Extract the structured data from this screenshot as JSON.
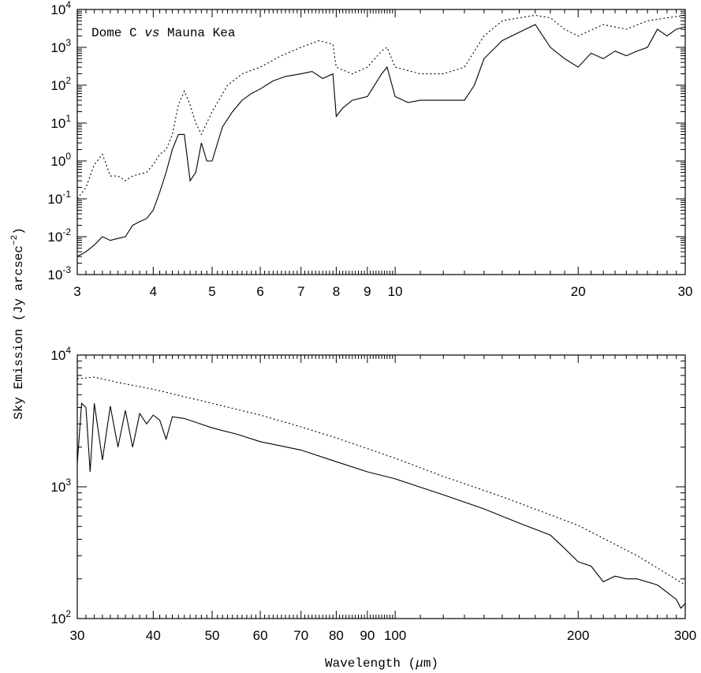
{
  "chart_data": [
    {
      "type": "line",
      "panel": "top",
      "annotation_parts": [
        "Dome C ",
        "vs",
        " Mauna Kea"
      ],
      "xscale": "log",
      "yscale": "log",
      "xlim": [
        3,
        30
      ],
      "ylim": [
        0.001,
        10000
      ],
      "xticks": [
        {
          "value": 3,
          "label": "3"
        },
        {
          "value": 4,
          "label": "4"
        },
        {
          "value": 5,
          "label": "5"
        },
        {
          "value": 6,
          "label": "6"
        },
        {
          "value": 7,
          "label": "7"
        },
        {
          "value": 8,
          "label": "8"
        },
        {
          "value": 9,
          "label": "9"
        },
        {
          "value": 10,
          "label": "10"
        },
        {
          "value": 20,
          "label": "20"
        },
        {
          "value": 30,
          "label": "30"
        }
      ],
      "yticks": [
        {
          "value": 0.001,
          "mantissa": "10",
          "exp": "-3"
        },
        {
          "value": 0.01,
          "mantissa": "10",
          "exp": "-2"
        },
        {
          "value": 0.1,
          "mantissa": "10",
          "exp": "-1"
        },
        {
          "value": 1,
          "mantissa": "10",
          "exp": "0"
        },
        {
          "value": 10,
          "mantissa": "10",
          "exp": "1"
        },
        {
          "value": 100,
          "mantissa": "10",
          "exp": "2"
        },
        {
          "value": 1000,
          "mantissa": "10",
          "exp": "3"
        },
        {
          "value": 10000,
          "mantissa": "10",
          "exp": "4"
        }
      ],
      "series": [
        {
          "style": "solid",
          "x": [
            3.0,
            3.1,
            3.2,
            3.3,
            3.4,
            3.5,
            3.6,
            3.7,
            3.8,
            3.9,
            4.0,
            4.1,
            4.2,
            4.3,
            4.4,
            4.5,
            4.6,
            4.7,
            4.8,
            4.9,
            5.0,
            5.2,
            5.4,
            5.6,
            5.8,
            6.0,
            6.3,
            6.6,
            7.0,
            7.3,
            7.6,
            7.9,
            8.0,
            8.2,
            8.5,
            9.0,
            9.5,
            9.7,
            10.0,
            10.5,
            11.0,
            12.0,
            13.0,
            13.5,
            14.0,
            15.0,
            16.0,
            17.0,
            18.0,
            19.0,
            20.0,
            21.0,
            22.0,
            23.0,
            24.0,
            25.0,
            26.0,
            27.0,
            28.0,
            29.0,
            30.0
          ],
          "y": [
            0.003,
            0.004,
            0.006,
            0.01,
            0.008,
            0.009,
            0.01,
            0.02,
            0.025,
            0.03,
            0.05,
            0.15,
            0.5,
            2.0,
            5.0,
            5.0,
            0.3,
            0.5,
            3.0,
            1.0,
            1.0,
            8.0,
            20.0,
            40.0,
            60.0,
            80.0,
            130.0,
            170.0,
            200.0,
            230.0,
            150.0,
            200.0,
            15.0,
            25.0,
            40.0,
            50.0,
            200.0,
            300.0,
            50.0,
            35.0,
            40.0,
            40.0,
            40.0,
            100.0,
            500.0,
            1500.0,
            2500.0,
            4000.0,
            1000.0,
            500.0,
            300.0,
            700.0,
            500.0,
            800.0,
            600.0,
            800.0,
            1000.0,
            3000.0,
            2000.0,
            3000.0,
            3500.0
          ]
        },
        {
          "style": "dotted",
          "x": [
            3.0,
            3.1,
            3.2,
            3.3,
            3.4,
            3.5,
            3.6,
            3.7,
            3.8,
            3.9,
            4.0,
            4.1,
            4.2,
            4.3,
            4.4,
            4.5,
            4.6,
            4.7,
            4.8,
            5.0,
            5.3,
            5.6,
            6.0,
            6.5,
            7.0,
            7.5,
            7.9,
            8.0,
            8.5,
            9.0,
            9.5,
            9.7,
            10.0,
            11.0,
            12.0,
            13.0,
            14.0,
            15.0,
            16.0,
            17.0,
            18.0,
            19.0,
            20.0,
            22.0,
            24.0,
            26.0,
            28.0,
            30.0
          ],
          "y": [
            0.1,
            0.2,
            0.8,
            1.5,
            0.4,
            0.4,
            0.3,
            0.4,
            0.45,
            0.5,
            0.8,
            1.5,
            2.0,
            5.0,
            30.0,
            70.0,
            30.0,
            10.0,
            5.0,
            20.0,
            100.0,
            200.0,
            300.0,
            600.0,
            1000.0,
            1500.0,
            1200.0,
            300.0,
            200.0,
            300.0,
            800.0,
            1000.0,
            300.0,
            200.0,
            200.0,
            300.0,
            2000.0,
            5000.0,
            6000.0,
            7000.0,
            6000.0,
            3000.0,
            2000.0,
            4000.0,
            3000.0,
            5000.0,
            6000.0,
            7000.0
          ]
        }
      ]
    },
    {
      "type": "line",
      "panel": "bottom",
      "xscale": "log",
      "yscale": "log",
      "xlim": [
        30,
        300
      ],
      "ylim": [
        100,
        10000
      ],
      "xticks": [
        {
          "value": 30,
          "label": "30"
        },
        {
          "value": 40,
          "label": "40"
        },
        {
          "value": 50,
          "label": "50"
        },
        {
          "value": 60,
          "label": "60"
        },
        {
          "value": 70,
          "label": "70"
        },
        {
          "value": 80,
          "label": "80"
        },
        {
          "value": 90,
          "label": "90"
        },
        {
          "value": 100,
          "label": "100"
        },
        {
          "value": 200,
          "label": "200"
        },
        {
          "value": 300,
          "label": "300"
        }
      ],
      "yticks": [
        {
          "value": 100,
          "mantissa": "10",
          "exp": "2"
        },
        {
          "value": 1000,
          "mantissa": "10",
          "exp": "3"
        },
        {
          "value": 10000,
          "mantissa": "10",
          "exp": "4"
        }
      ],
      "series": [
        {
          "style": "solid",
          "x": [
            30.0,
            30.5,
            31.0,
            31.5,
            32.0,
            33.0,
            34.0,
            35.0,
            36.0,
            37.0,
            38.0,
            39.0,
            40.0,
            41.0,
            42.0,
            43.0,
            45.0,
            50.0,
            55.0,
            60.0,
            70.0,
            80.0,
            90.0,
            100.0,
            120.0,
            140.0,
            160.0,
            180.0,
            190.0,
            200.0,
            210.0,
            220.0,
            230.0,
            240.0,
            250.0,
            270.0,
            290.0,
            295.0,
            300.0
          ],
          "y": [
            1500.0,
            4300.0,
            4000.0,
            1300.0,
            4300.0,
            1600.0,
            4100.0,
            2000.0,
            3800.0,
            2000.0,
            3600.0,
            3000.0,
            3500.0,
            3200.0,
            2300.0,
            3400.0,
            3300.0,
            2800.0,
            2500.0,
            2200.0,
            1900.0,
            1550.0,
            1300.0,
            1150.0,
            870.0,
            680.0,
            530.0,
            430.0,
            340.0,
            270.0,
            250.0,
            190.0,
            210.0,
            200.0,
            200.0,
            180.0,
            140.0,
            120.0,
            130.0
          ]
        },
        {
          "style": "dotted",
          "x": [
            30.0,
            32.0,
            35.0,
            40.0,
            50.0,
            60.0,
            70.0,
            80.0,
            100.0,
            120.0,
            150.0,
            200.0,
            250.0,
            300.0
          ],
          "y": [
            6600.0,
            6800.0,
            6200.0,
            5500.0,
            4300.0,
            3500.0,
            2850.0,
            2350.0,
            1650.0,
            1200.0,
            840.0,
            510.0,
            300.0,
            180.0
          ]
        }
      ]
    }
  ],
  "labels": {
    "ylabel_main": "Sky Emission (Jy arcsec",
    "ylabel_sup": "−2",
    "ylabel_close": ")",
    "xlabel_main": "Wavelength (",
    "xlabel_mu": "μ",
    "xlabel_rest": "m)"
  }
}
